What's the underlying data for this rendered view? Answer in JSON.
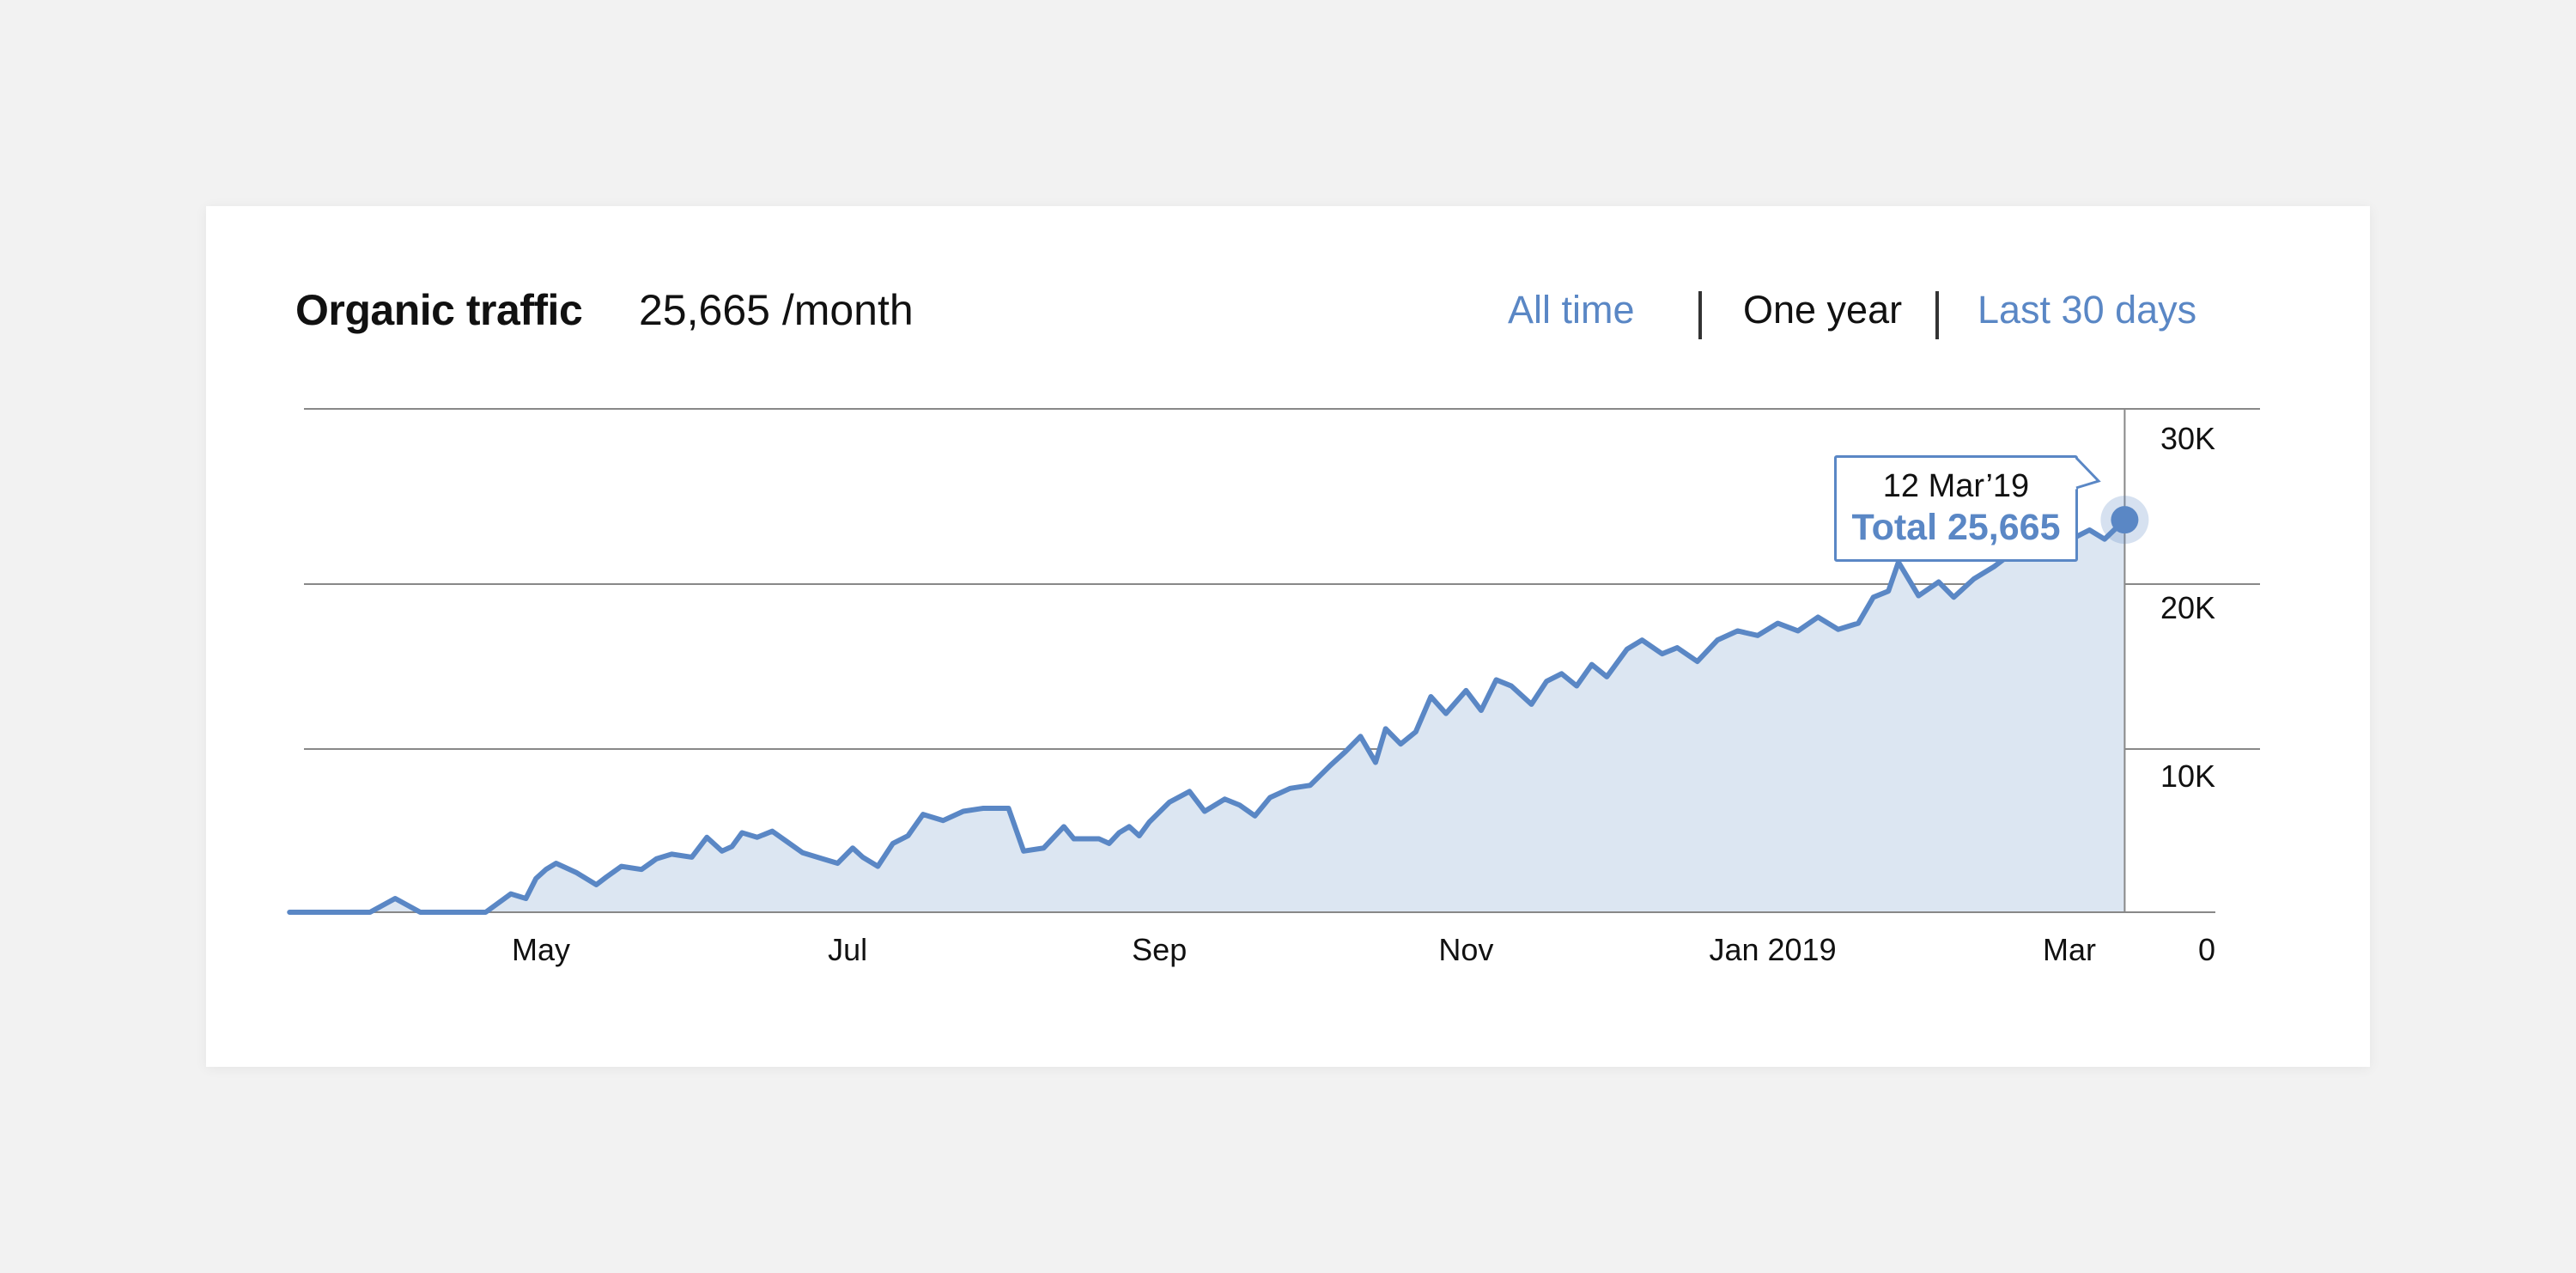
{
  "header": {
    "title": "Organic traffic",
    "metric": "25,665 /month"
  },
  "ranges": [
    {
      "label": "All time",
      "active": false
    },
    {
      "label": "One year",
      "active": true
    },
    {
      "label": "Last 30 days",
      "active": false
    }
  ],
  "tooltip": {
    "date": "12 Mar’19",
    "total": "Total 25,665"
  },
  "colors": {
    "line": "#5a87c5",
    "fill": "#dce6f2",
    "grid": "#888888",
    "link": "#5a87c5"
  },
  "chart_data": {
    "type": "area",
    "title": "Organic traffic",
    "ylim": [
      0,
      30000
    ],
    "yticks": [
      {
        "value": 30000,
        "label": "30K"
      },
      {
        "value": 20000,
        "label": "20K"
      },
      {
        "value": 10000,
        "label": "10K"
      },
      {
        "value": 0,
        "label": "0"
      }
    ],
    "xticks": [
      {
        "label": "May",
        "date": "2018-05-01"
      },
      {
        "label": "Jul",
        "date": "2018-07-01"
      },
      {
        "label": "Sep",
        "date": "2018-09-01"
      },
      {
        "label": "Nov",
        "date": "2018-11-01"
      },
      {
        "label": "Jan 2019",
        "date": "2019-01-01"
      },
      {
        "label": "Mar",
        "date": "2019-03-01"
      }
    ],
    "grid": true,
    "x": [
      "2018-03-12",
      "2018-03-28",
      "2018-04-02",
      "2018-04-07",
      "2018-04-20",
      "2018-04-25",
      "2018-04-28",
      "2018-04-30",
      "2018-05-02",
      "2018-05-04",
      "2018-05-08",
      "2018-05-12",
      "2018-05-14",
      "2018-05-17",
      "2018-05-21",
      "2018-05-24",
      "2018-05-27",
      "2018-05-31",
      "2018-06-03",
      "2018-06-06",
      "2018-06-08",
      "2018-06-10",
      "2018-06-13",
      "2018-06-16",
      "2018-06-19",
      "2018-06-22",
      "2018-06-26",
      "2018-06-29",
      "2018-07-02",
      "2018-07-04",
      "2018-07-07",
      "2018-07-10",
      "2018-07-13",
      "2018-07-16",
      "2018-07-20",
      "2018-07-24",
      "2018-07-28",
      "2018-08-02",
      "2018-08-05",
      "2018-08-09",
      "2018-08-13",
      "2018-08-15",
      "2018-08-20",
      "2018-08-22",
      "2018-08-24",
      "2018-08-26",
      "2018-08-28",
      "2018-08-30",
      "2018-09-03",
      "2018-09-07",
      "2018-09-10",
      "2018-09-14",
      "2018-09-17",
      "2018-09-20",
      "2018-09-23",
      "2018-09-27",
      "2018-10-01",
      "2018-10-05",
      "2018-10-08",
      "2018-10-11",
      "2018-10-14",
      "2018-10-16",
      "2018-10-19",
      "2018-10-22",
      "2018-10-25",
      "2018-10-28",
      "2018-11-01",
      "2018-11-04",
      "2018-11-07",
      "2018-11-10",
      "2018-11-14",
      "2018-11-17",
      "2018-11-20",
      "2018-11-23",
      "2018-11-26",
      "2018-11-29",
      "2018-12-03",
      "2018-12-06",
      "2018-12-10",
      "2018-12-13",
      "2018-12-17",
      "2018-12-21",
      "2018-12-25",
      "2018-12-29",
      "2019-01-02",
      "2019-01-06",
      "2019-01-10",
      "2019-01-14",
      "2019-01-18",
      "2019-01-21",
      "2019-01-24",
      "2019-01-26",
      "2019-01-30",
      "2019-02-03",
      "2019-02-06",
      "2019-02-10",
      "2019-02-14",
      "2019-02-18",
      "2019-02-22",
      "2019-02-26",
      "2019-03-02",
      "2019-03-05",
      "2019-03-08",
      "2019-03-12"
    ],
    "series": [
      {
        "values": [
          0,
          0,
          900,
          0,
          0,
          1200,
          900,
          2200,
          2800,
          3200,
          2600,
          1800,
          2300,
          3000,
          2800,
          3500,
          3800,
          3600,
          4900,
          4000,
          4300,
          5200,
          4900,
          5300,
          4600,
          3900,
          3500,
          3200,
          4200,
          3600,
          3000,
          4500,
          5000,
          6400,
          6000,
          6600,
          6800,
          6800,
          4000,
          4200,
          5600,
          4800,
          4800,
          4500,
          5200,
          5600,
          5000,
          5900,
          7200,
          7900,
          6600,
          7400,
          7000,
          6300,
          7500,
          8100,
          8300,
          9600,
          10500,
          11500,
          9800,
          12000,
          11000,
          11800,
          14100,
          13000,
          14500,
          13200,
          15200,
          14800,
          13600,
          15100,
          15600,
          14800,
          16200,
          15400,
          17200,
          17800,
          16900,
          17300,
          16400,
          17800,
          18400,
          18100,
          18900,
          18400,
          19300,
          18500,
          18900,
          20600,
          21000,
          22900,
          20700,
          21600,
          20600,
          21800,
          22600,
          23600,
          23300,
          24100,
          24500,
          25000,
          24400,
          25665
        ]
      }
    ]
  }
}
